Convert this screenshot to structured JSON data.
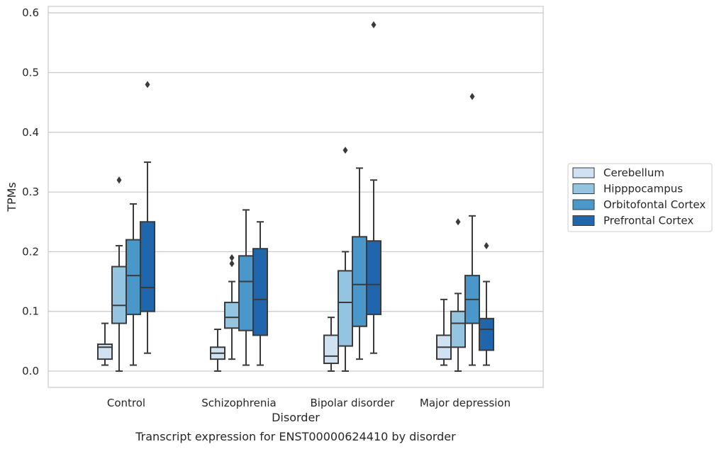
{
  "chart_data": {
    "type": "box",
    "title": "",
    "caption": "Transcript expression for ENST00000624410 by disorder",
    "xlabel": "Disorder",
    "ylabel": "TPMs",
    "ylim": [
      -0.028,
      0.61
    ],
    "yticks": [
      "0.0",
      "0.1",
      "0.2",
      "0.3",
      "0.4",
      "0.5",
      "0.6"
    ],
    "grid": "horizontal",
    "legend_position": "right",
    "categories": [
      "Control",
      "Schizophrenia",
      "Bipolar disorder",
      "Major depression"
    ],
    "series": [
      {
        "name": "Cerebellum",
        "color": "#d0e1f2",
        "boxes": [
          {
            "q1": 0.02,
            "median": 0.04,
            "q3": 0.045,
            "whisker_low": 0.01,
            "whisker_high": 0.08,
            "outliers": []
          },
          {
            "q1": 0.02,
            "median": 0.03,
            "q3": 0.04,
            "whisker_low": 0.0,
            "whisker_high": 0.07,
            "outliers": []
          },
          {
            "q1": 0.013,
            "median": 0.025,
            "q3": 0.06,
            "whisker_low": 0.0,
            "whisker_high": 0.09,
            "outliers": []
          },
          {
            "q1": 0.02,
            "median": 0.04,
            "q3": 0.06,
            "whisker_low": 0.01,
            "whisker_high": 0.12,
            "outliers": []
          }
        ]
      },
      {
        "name": "Hipppocampus",
        "color": "#94c4df",
        "boxes": [
          {
            "q1": 0.08,
            "median": 0.11,
            "q3": 0.175,
            "whisker_low": 0.0,
            "whisker_high": 0.21,
            "outliers": [
              0.32
            ]
          },
          {
            "q1": 0.072,
            "median": 0.09,
            "q3": 0.115,
            "whisker_low": 0.02,
            "whisker_high": 0.15,
            "outliers": [
              0.18,
              0.19
            ]
          },
          {
            "q1": 0.042,
            "median": 0.115,
            "q3": 0.168,
            "whisker_low": 0.0,
            "whisker_high": 0.2,
            "outliers": [
              0.37
            ]
          },
          {
            "q1": 0.04,
            "median": 0.08,
            "q3": 0.1,
            "whisker_low": 0.0,
            "whisker_high": 0.13,
            "outliers": [
              0.25
            ]
          }
        ]
      },
      {
        "name": "Orbitofontal Cortex",
        "color": "#4a98c9",
        "boxes": [
          {
            "q1": 0.095,
            "median": 0.16,
            "q3": 0.22,
            "whisker_low": 0.01,
            "whisker_high": 0.28,
            "outliers": []
          },
          {
            "q1": 0.068,
            "median": 0.15,
            "q3": 0.193,
            "whisker_low": 0.01,
            "whisker_high": 0.27,
            "outliers": []
          },
          {
            "q1": 0.075,
            "median": 0.145,
            "q3": 0.225,
            "whisker_low": 0.02,
            "whisker_high": 0.34,
            "outliers": []
          },
          {
            "q1": 0.08,
            "median": 0.12,
            "q3": 0.16,
            "whisker_low": 0.01,
            "whisker_high": 0.26,
            "outliers": [
              0.46
            ]
          }
        ]
      },
      {
        "name": "Prefrontal Cortex",
        "color": "#2066ac",
        "boxes": [
          {
            "q1": 0.1,
            "median": 0.14,
            "q3": 0.25,
            "whisker_low": 0.03,
            "whisker_high": 0.35,
            "outliers": [
              0.48
            ]
          },
          {
            "q1": 0.06,
            "median": 0.12,
            "q3": 0.205,
            "whisker_low": 0.01,
            "whisker_high": 0.25,
            "outliers": []
          },
          {
            "q1": 0.095,
            "median": 0.145,
            "q3": 0.218,
            "whisker_low": 0.03,
            "whisker_high": 0.32,
            "outliers": [
              0.58
            ]
          },
          {
            "q1": 0.035,
            "median": 0.07,
            "q3": 0.088,
            "whisker_low": 0.01,
            "whisker_high": 0.15,
            "outliers": [
              0.21
            ]
          }
        ]
      }
    ]
  }
}
